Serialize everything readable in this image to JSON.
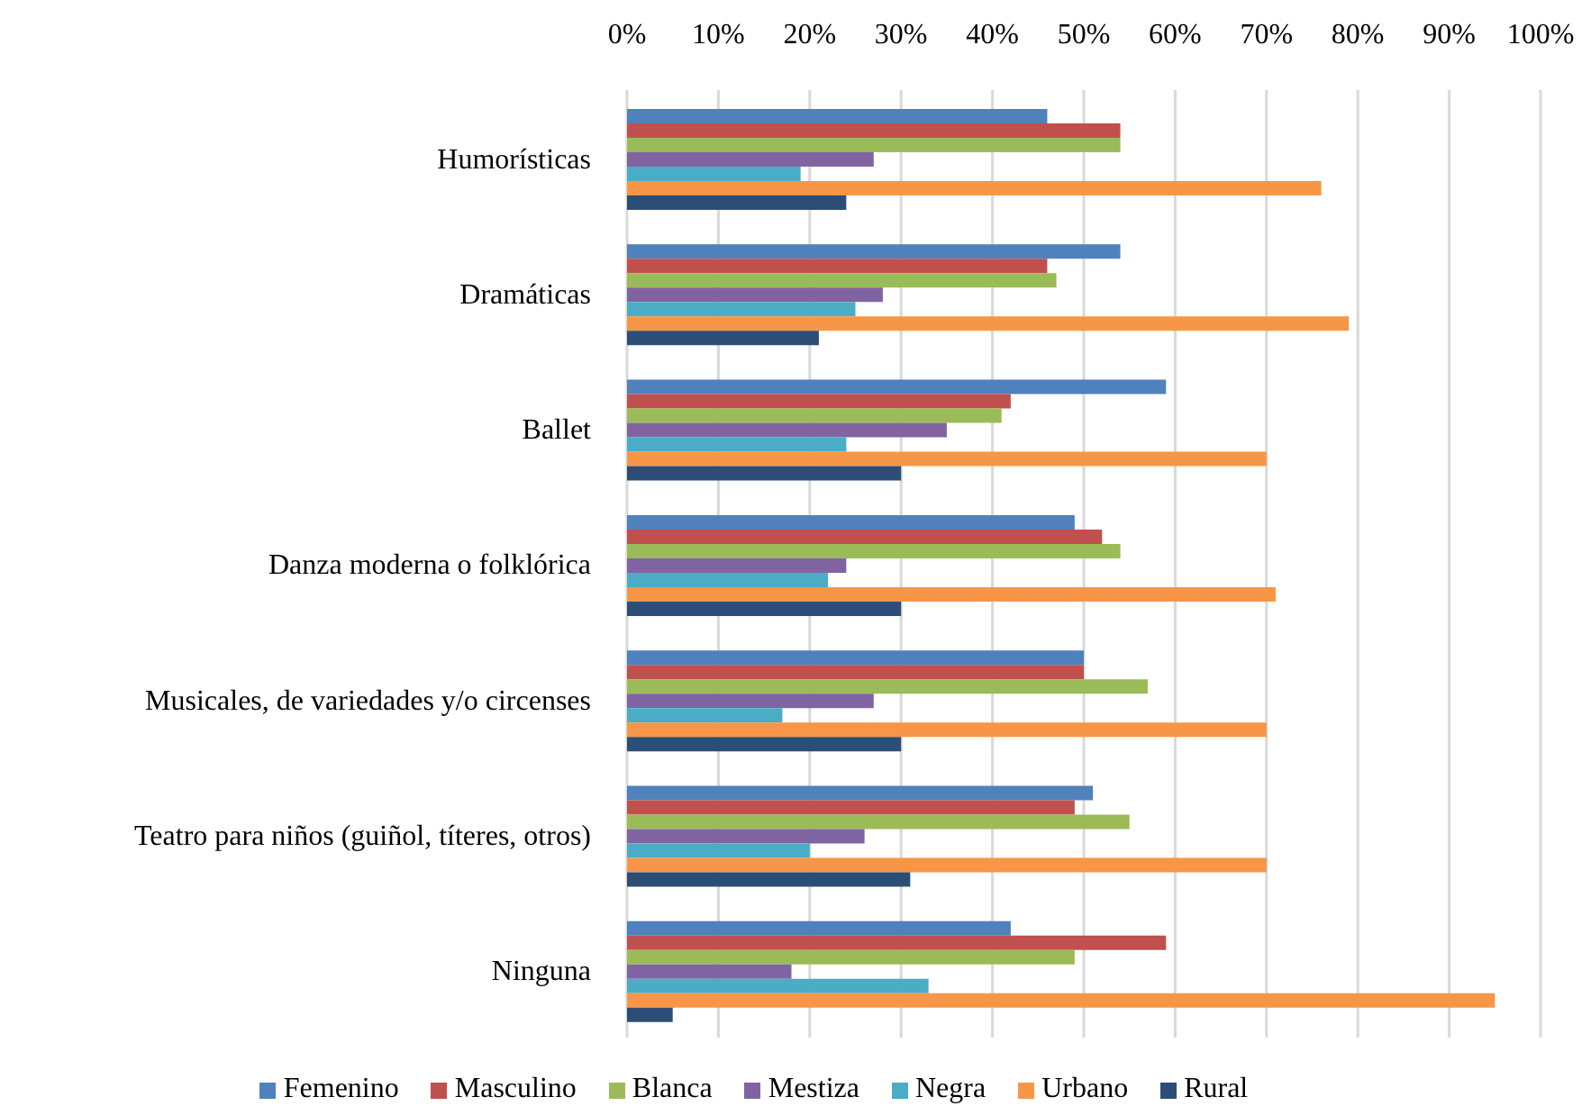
{
  "chart_data": {
    "type": "bar",
    "orientation": "horizontal",
    "categories": [
      "Humorísticas",
      "Dramáticas",
      "Ballet",
      "Danza moderna o folklórica",
      "Musicales, de variedades y/o circenses",
      "Teatro para niños (guiñol, títeres, otros)",
      "Ninguna"
    ],
    "series": [
      {
        "name": "Femenino",
        "color": "#4f81bd",
        "values": [
          46,
          54,
          59,
          49,
          50,
          51,
          42
        ]
      },
      {
        "name": "Masculino",
        "color": "#c0504d",
        "values": [
          54,
          46,
          42,
          52,
          50,
          49,
          59
        ]
      },
      {
        "name": "Blanca",
        "color": "#9bbb59",
        "values": [
          54,
          47,
          41,
          54,
          57,
          55,
          49
        ]
      },
      {
        "name": "Mestiza",
        "color": "#8064a2",
        "values": [
          27,
          28,
          35,
          24,
          27,
          26,
          18
        ]
      },
      {
        "name": "Negra",
        "color": "#4bacc6",
        "values": [
          19,
          25,
          24,
          22,
          17,
          20,
          33
        ]
      },
      {
        "name": "Urbano",
        "color": "#f79646",
        "values": [
          76,
          79,
          70,
          71,
          70,
          70,
          95
        ]
      },
      {
        "name": "Rural",
        "color": "#2c4d75",
        "values": [
          24,
          21,
          30,
          30,
          30,
          31,
          5
        ]
      }
    ],
    "xlim": [
      0,
      100
    ],
    "xticks": [
      {
        "value": 0,
        "label": "0%"
      },
      {
        "value": 10,
        "label": "10%"
      },
      {
        "value": 20,
        "label": "20%"
      },
      {
        "value": 30,
        "label": "30%"
      },
      {
        "value": 40,
        "label": "40%"
      },
      {
        "value": 50,
        "label": "50%"
      },
      {
        "value": 60,
        "label": "60%"
      },
      {
        "value": 70,
        "label": "70%"
      },
      {
        "value": 80,
        "label": "80%"
      },
      {
        "value": 90,
        "label": "90%"
      },
      {
        "value": 100,
        "label": "100%"
      }
    ],
    "grid": "x",
    "legend": "bottom"
  }
}
